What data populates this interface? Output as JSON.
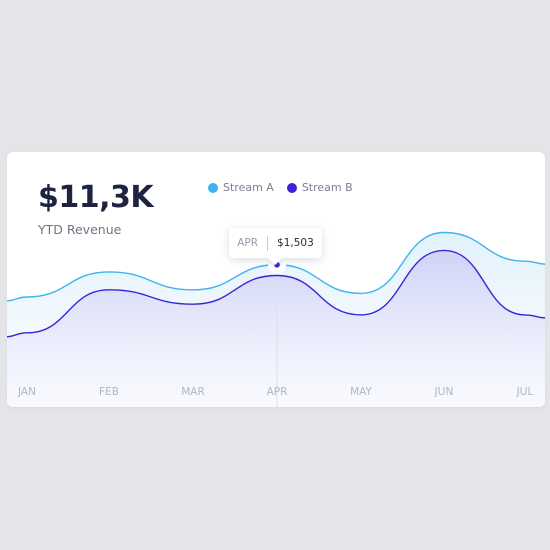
{
  "kpi": {
    "value": "$11,3K",
    "label": "YTD Revenue"
  },
  "colors": {
    "stream_a": "#3db4ee",
    "stream_b": "#3e23d6",
    "grid": "#dde0e7",
    "tick": "#b3b6c3"
  },
  "tooltip": {
    "month": "APR",
    "value": "$1,503"
  },
  "chart_data": {
    "type": "area",
    "x": [
      "JAN",
      "FEB",
      "MAR",
      "APR",
      "MAY",
      "JUN",
      "JUL"
    ],
    "series": [
      {
        "name": "Stream A",
        "values": [
          1.2,
          1.55,
          1.3,
          1.65,
          1.25,
          2.1,
          1.7
        ]
      },
      {
        "name": "Stream B",
        "values": [
          0.7,
          1.3,
          1.1,
          1.5,
          0.95,
          1.85,
          0.95
        ]
      }
    ],
    "tooltip_index": 3,
    "ylim": [
      0,
      2.4
    ],
    "legend": "top"
  }
}
